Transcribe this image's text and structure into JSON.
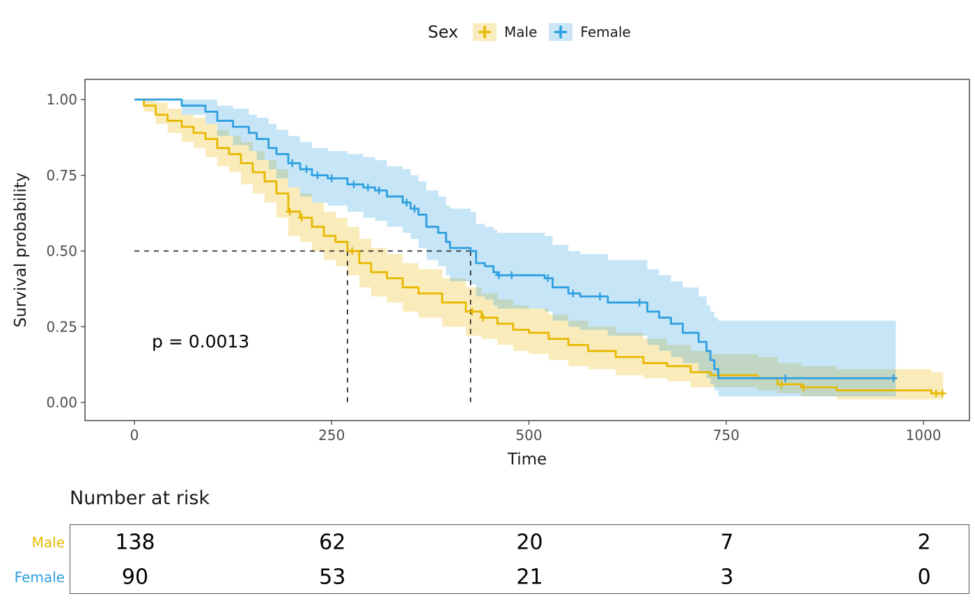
{
  "legend": {
    "title": "Sex",
    "items": [
      {
        "label": "Male",
        "color": "#E7B800"
      },
      {
        "label": "Female",
        "color": "#2E9FDF"
      }
    ]
  },
  "axes": {
    "x_label": "Time",
    "y_label": "Survival probability",
    "x_ticks": [
      0,
      250,
      500,
      750,
      1000
    ],
    "y_ticks": [
      {
        "v": 0.0,
        "label": "0.00"
      },
      {
        "v": 0.25,
        "label": "0.25"
      },
      {
        "v": 0.5,
        "label": "0.50"
      },
      {
        "v": 0.75,
        "label": "0.75"
      },
      {
        "v": 1.0,
        "label": "1.00"
      }
    ]
  },
  "annotation": {
    "p_value": "p = 0.0013"
  },
  "medians": {
    "y": 0.5,
    "x": [
      270,
      426
    ]
  },
  "risk_table": {
    "title": "Number at risk",
    "times": [
      0,
      250,
      500,
      750,
      1000
    ],
    "rows": [
      {
        "label": "Male",
        "color": "#E7B800",
        "counts": [
          138,
          62,
          20,
          7,
          2
        ]
      },
      {
        "label": "Female",
        "color": "#2E9FDF",
        "counts": [
          90,
          53,
          21,
          3,
          0
        ]
      }
    ]
  },
  "chart_data": {
    "type": "line",
    "subtype": "kaplan-meier-step",
    "title": "",
    "xlabel": "Time",
    "ylabel": "Survival probability",
    "xlim": [
      0,
      1060
    ],
    "ylim": [
      0,
      1
    ],
    "grid": false,
    "legend_position": "top",
    "p_value": 0.0013,
    "median_survival": {
      "Male": 270,
      "Female": 426
    },
    "series": [
      {
        "name": "Male",
        "color": "#E7B800",
        "n": 138,
        "steps": [
          [
            0,
            1.0,
            1.0,
            1.0
          ],
          [
            12,
            0.98,
            0.96,
            1.0
          ],
          [
            27,
            0.95,
            0.92,
            0.99
          ],
          [
            42,
            0.93,
            0.89,
            0.97
          ],
          [
            60,
            0.91,
            0.86,
            0.95
          ],
          [
            75,
            0.89,
            0.84,
            0.94
          ],
          [
            90,
            0.87,
            0.81,
            0.92
          ],
          [
            105,
            0.84,
            0.78,
            0.9
          ],
          [
            120,
            0.82,
            0.76,
            0.88
          ],
          [
            135,
            0.79,
            0.72,
            0.86
          ],
          [
            150,
            0.76,
            0.69,
            0.83
          ],
          [
            165,
            0.73,
            0.66,
            0.8
          ],
          [
            180,
            0.69,
            0.61,
            0.77
          ],
          [
            195,
            0.63,
            0.55,
            0.71
          ],
          [
            210,
            0.61,
            0.53,
            0.69
          ],
          [
            225,
            0.58,
            0.5,
            0.66
          ],
          [
            240,
            0.55,
            0.47,
            0.63
          ],
          [
            255,
            0.53,
            0.45,
            0.61
          ],
          [
            270,
            0.5,
            0.42,
            0.58
          ],
          [
            285,
            0.46,
            0.38,
            0.54
          ],
          [
            300,
            0.43,
            0.35,
            0.51
          ],
          [
            320,
            0.41,
            0.33,
            0.49
          ],
          [
            340,
            0.38,
            0.3,
            0.46
          ],
          [
            360,
            0.36,
            0.28,
            0.44
          ],
          [
            390,
            0.33,
            0.25,
            0.41
          ],
          [
            420,
            0.3,
            0.22,
            0.38
          ],
          [
            440,
            0.28,
            0.21,
            0.36
          ],
          [
            460,
            0.26,
            0.19,
            0.34
          ],
          [
            480,
            0.24,
            0.17,
            0.32
          ],
          [
            500,
            0.23,
            0.16,
            0.31
          ],
          [
            525,
            0.21,
            0.14,
            0.29
          ],
          [
            550,
            0.19,
            0.12,
            0.27
          ],
          [
            575,
            0.17,
            0.11,
            0.25
          ],
          [
            610,
            0.15,
            0.09,
            0.23
          ],
          [
            645,
            0.13,
            0.08,
            0.21
          ],
          [
            675,
            0.12,
            0.07,
            0.19
          ],
          [
            705,
            0.1,
            0.05,
            0.17
          ],
          [
            730,
            0.09,
            0.05,
            0.16
          ],
          [
            790,
            0.08,
            0.04,
            0.15
          ],
          [
            815,
            0.06,
            0.03,
            0.13
          ],
          [
            845,
            0.05,
            0.02,
            0.12
          ],
          [
            890,
            0.04,
            0.01,
            0.11
          ],
          [
            1010,
            0.03,
            0.01,
            0.1
          ],
          [
            1025,
            0.03,
            0.01,
            0.1
          ]
        ],
        "censor": [
          [
            197,
            0.63
          ],
          [
            212,
            0.61
          ],
          [
            276,
            0.5
          ],
          [
            428,
            0.3
          ],
          [
            442,
            0.28
          ],
          [
            820,
            0.06
          ],
          [
            848,
            0.05
          ],
          [
            1016,
            0.03
          ],
          [
            1024,
            0.03
          ]
        ]
      },
      {
        "name": "Female",
        "color": "#2E9FDF",
        "n": 90,
        "steps": [
          [
            0,
            1.0,
            1.0,
            1.0
          ],
          [
            60,
            0.98,
            0.95,
            1.0
          ],
          [
            90,
            0.96,
            0.92,
            1.0
          ],
          [
            105,
            0.93,
            0.88,
            0.98
          ],
          [
            125,
            0.91,
            0.85,
            0.97
          ],
          [
            145,
            0.89,
            0.83,
            0.95
          ],
          [
            155,
            0.87,
            0.8,
            0.94
          ],
          [
            170,
            0.84,
            0.77,
            0.92
          ],
          [
            180,
            0.82,
            0.74,
            0.9
          ],
          [
            195,
            0.79,
            0.71,
            0.88
          ],
          [
            210,
            0.77,
            0.68,
            0.86
          ],
          [
            225,
            0.75,
            0.66,
            0.84
          ],
          [
            245,
            0.74,
            0.65,
            0.83
          ],
          [
            270,
            0.72,
            0.63,
            0.82
          ],
          [
            290,
            0.71,
            0.61,
            0.81
          ],
          [
            305,
            0.7,
            0.6,
            0.8
          ],
          [
            320,
            0.68,
            0.58,
            0.78
          ],
          [
            340,
            0.66,
            0.56,
            0.77
          ],
          [
            350,
            0.64,
            0.54,
            0.75
          ],
          [
            360,
            0.62,
            0.51,
            0.73
          ],
          [
            370,
            0.58,
            0.47,
            0.7
          ],
          [
            385,
            0.56,
            0.45,
            0.68
          ],
          [
            395,
            0.53,
            0.42,
            0.65
          ],
          [
            400,
            0.51,
            0.4,
            0.64
          ],
          [
            426,
            0.5,
            0.39,
            0.63
          ],
          [
            433,
            0.46,
            0.35,
            0.59
          ],
          [
            444,
            0.45,
            0.34,
            0.58
          ],
          [
            455,
            0.43,
            0.32,
            0.57
          ],
          [
            460,
            0.42,
            0.31,
            0.56
          ],
          [
            520,
            0.41,
            0.3,
            0.55
          ],
          [
            530,
            0.38,
            0.27,
            0.52
          ],
          [
            550,
            0.36,
            0.25,
            0.5
          ],
          [
            565,
            0.35,
            0.24,
            0.49
          ],
          [
            600,
            0.33,
            0.22,
            0.47
          ],
          [
            650,
            0.3,
            0.19,
            0.44
          ],
          [
            665,
            0.28,
            0.17,
            0.42
          ],
          [
            680,
            0.26,
            0.15,
            0.4
          ],
          [
            695,
            0.23,
            0.13,
            0.38
          ],
          [
            715,
            0.2,
            0.1,
            0.35
          ],
          [
            725,
            0.17,
            0.08,
            0.32
          ],
          [
            730,
            0.14,
            0.06,
            0.3
          ],
          [
            735,
            0.11,
            0.04,
            0.28
          ],
          [
            740,
            0.08,
            0.02,
            0.27
          ],
          [
            965,
            0.08,
            0.02,
            0.27
          ]
        ],
        "censor": [
          [
            200,
            0.79
          ],
          [
            218,
            0.77
          ],
          [
            232,
            0.75
          ],
          [
            250,
            0.74
          ],
          [
            278,
            0.72
          ],
          [
            296,
            0.71
          ],
          [
            310,
            0.7
          ],
          [
            345,
            0.66
          ],
          [
            355,
            0.64
          ],
          [
            462,
            0.42
          ],
          [
            478,
            0.42
          ],
          [
            524,
            0.41
          ],
          [
            556,
            0.36
          ],
          [
            590,
            0.35
          ],
          [
            640,
            0.33
          ],
          [
            825,
            0.08
          ],
          [
            962,
            0.08
          ]
        ]
      }
    ]
  }
}
